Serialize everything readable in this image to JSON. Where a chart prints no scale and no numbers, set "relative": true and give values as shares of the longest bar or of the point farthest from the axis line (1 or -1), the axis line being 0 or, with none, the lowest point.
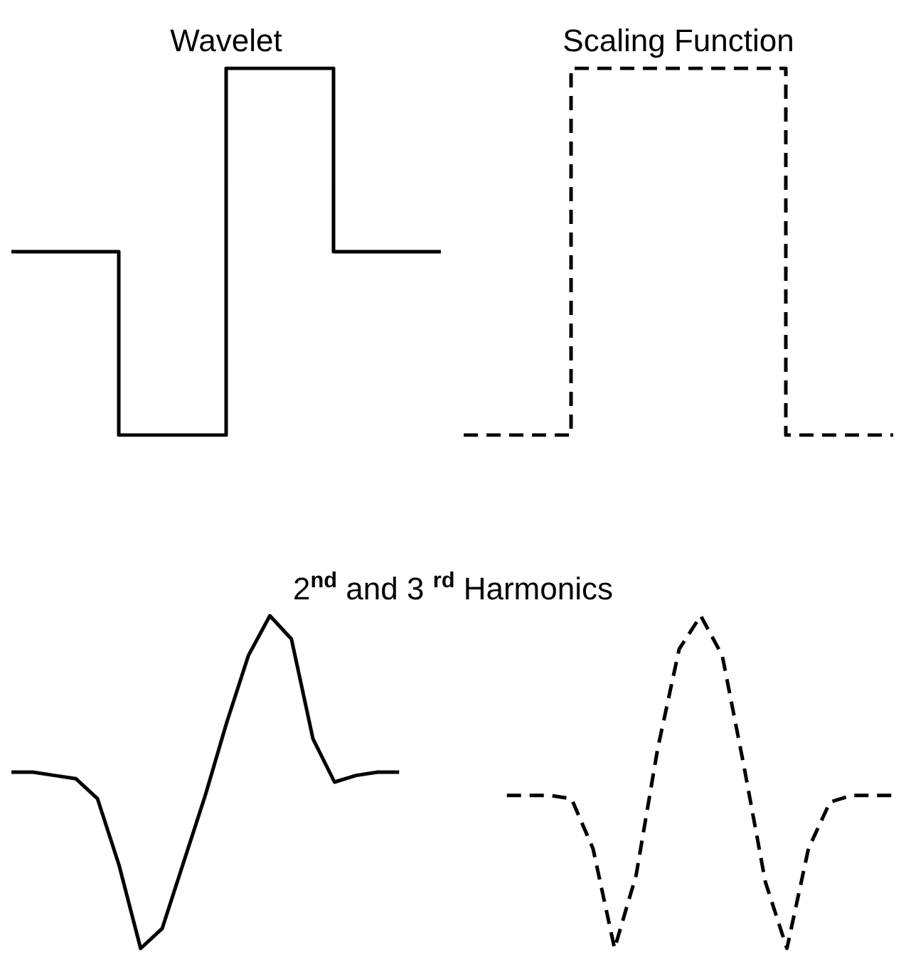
{
  "chart_data": [
    {
      "type": "step",
      "title": "Wavelet",
      "relative": true,
      "marker": "none",
      "categories": [
        null,
        null,
        null,
        null,
        null
      ],
      "series": [
        {
          "color": "#000000",
          "line_style": "solid",
          "values": [
            0.5,
            0,
            1,
            0.5,
            0.5
          ]
        }
      ]
    },
    {
      "type": "step",
      "title": "Scaling Function",
      "relative": true,
      "marker": "none",
      "categories": [
        null,
        null,
        null,
        null,
        null
      ],
      "series": [
        {
          "color": "#000000",
          "line_style": "dashed",
          "values": [
            0,
            1,
            1,
            0,
            0
          ]
        }
      ]
    },
    {
      "type": "line",
      "title": "2$^{nd}$ and 3 $^{rd}$ Harmonics",
      "relative": true,
      "marker": "none",
      "categories": [
        null,
        null,
        null,
        null,
        null,
        null,
        null,
        null,
        null,
        null,
        null,
        null,
        null,
        null,
        null,
        null,
        null,
        null,
        null,
        null,
        null,
        null,
        null,
        null,
        null,
        null,
        null,
        null,
        null,
        null,
        null,
        null,
        null,
        null,
        null,
        null,
        null,
        null,
        null,
        null,
        null,
        null
      ],
      "series": [
        {
          "color": "#000000",
          "line_style": "solid",
          "values": [
            0.53,
            0.53,
            0.52,
            0.51,
            0.45,
            0.25,
            0,
            0.06,
            0.26,
            0.46,
            0.68,
            0.88,
            1,
            0.93,
            0.63,
            0.5,
            0.52,
            0.53,
            0.53,
            null,
            null,
            null,
            null,
            null,
            null,
            null,
            null,
            null,
            null,
            null,
            null,
            null,
            null,
            null,
            null,
            null,
            null,
            null,
            null,
            null,
            null,
            null
          ]
        },
        {
          "color": "#000000",
          "line_style": "dashed",
          "values": [
            null,
            null,
            null,
            null,
            null,
            null,
            null,
            null,
            null,
            null,
            null,
            null,
            null,
            null,
            null,
            null,
            null,
            null,
            null,
            null,
            null,
            null,
            null,
            0.46,
            0.46,
            0.46,
            0.45,
            0.3,
            0,
            0.22,
            0.6,
            0.9,
            1,
            0.88,
            0.55,
            0.2,
            0,
            0.3,
            0.44,
            0.46,
            0.46,
            0.46
          ]
        }
      ]
    }
  ]
}
